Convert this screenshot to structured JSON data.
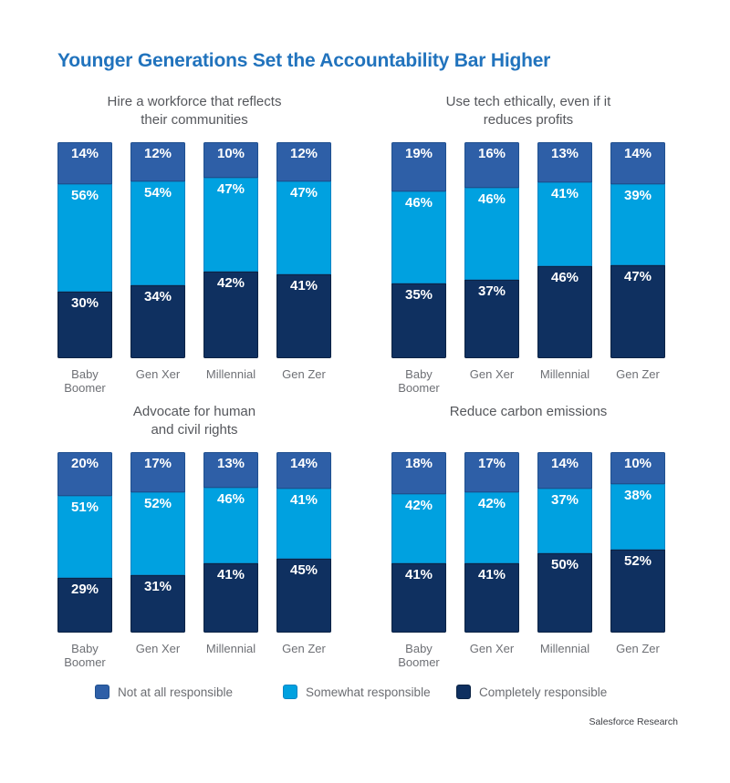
{
  "title": "Younger Generations Set the Accountability Bar Higher",
  "footer": {
    "source": "Salesforce Research"
  },
  "colors": {
    "title": "#2173bd",
    "subtitle_text": "#55575c",
    "category_text": "#6e7075",
    "legend_text": "#6b6d72",
    "source_text": "#3c3e43",
    "series": {
      "not_at_all": {
        "fill": "#2e5fa7",
        "border": "#20508f"
      },
      "somewhat": {
        "fill": "#00a1e0",
        "border": "#0a85c4"
      },
      "completely": {
        "fill": "#0f3060",
        "border": "#0b2344"
      }
    }
  },
  "legend": [
    {
      "key": "not_at_all",
      "label": "Not at all responsible"
    },
    {
      "key": "somewhat",
      "label": "Somewhat responsible"
    },
    {
      "key": "completely",
      "label": "Completely responsible"
    }
  ],
  "chart_data": [
    {
      "type": "bar",
      "stacked": true,
      "unit": "%",
      "title": "Hire a workforce that reflects\ntheir communities",
      "categories": [
        "Baby\nBoomer",
        "Gen Xer",
        "Millennial",
        "Gen Zer"
      ],
      "series": [
        {
          "key": "not_at_all",
          "name": "Not at all responsible",
          "values": [
            14,
            12,
            10,
            12
          ]
        },
        {
          "key": "somewhat",
          "name": "Somewhat responsible",
          "values": [
            56,
            54,
            47,
            47
          ]
        },
        {
          "key": "completely",
          "name": "Completely responsible",
          "values": [
            30,
            34,
            42,
            41
          ]
        }
      ]
    },
    {
      "type": "bar",
      "stacked": true,
      "unit": "%",
      "title": "Use tech ethically, even if it\nreduces profits",
      "categories": [
        "Baby\nBoomer",
        "Gen Xer",
        "Millennial",
        "Gen Zer"
      ],
      "series": [
        {
          "key": "not_at_all",
          "name": "Not at all responsible",
          "values": [
            19,
            16,
            13,
            14
          ]
        },
        {
          "key": "somewhat",
          "name": "Somewhat responsible",
          "values": [
            46,
            46,
            41,
            39
          ]
        },
        {
          "key": "completely",
          "name": "Completely responsible",
          "values": [
            35,
            37,
            46,
            47
          ]
        }
      ]
    },
    {
      "type": "bar",
      "stacked": true,
      "unit": "%",
      "title": "Advocate for human\nand civil rights",
      "categories": [
        "Baby\nBoomer",
        "Gen Xer",
        "Millennial",
        "Gen Zer"
      ],
      "series": [
        {
          "key": "not_at_all",
          "name": "Not at all responsible",
          "values": [
            20,
            17,
            13,
            14
          ]
        },
        {
          "key": "somewhat",
          "name": "Somewhat responsible",
          "values": [
            51,
            52,
            46,
            41
          ]
        },
        {
          "key": "completely",
          "name": "Completely responsible",
          "values": [
            29,
            31,
            41,
            45
          ]
        }
      ]
    },
    {
      "type": "bar",
      "stacked": true,
      "unit": "%",
      "title": "Reduce carbon emissions",
      "categories": [
        "Baby\nBoomer",
        "Gen Xer",
        "Millennial",
        "Gen Zer"
      ],
      "series": [
        {
          "key": "not_at_all",
          "name": "Not at all responsible",
          "values": [
            18,
            17,
            14,
            10
          ]
        },
        {
          "key": "somewhat",
          "name": "Somewhat responsible",
          "values": [
            42,
            42,
            37,
            38
          ]
        },
        {
          "key": "completely",
          "name": "Completely responsible",
          "values": [
            41,
            41,
            50,
            52
          ]
        }
      ]
    }
  ]
}
